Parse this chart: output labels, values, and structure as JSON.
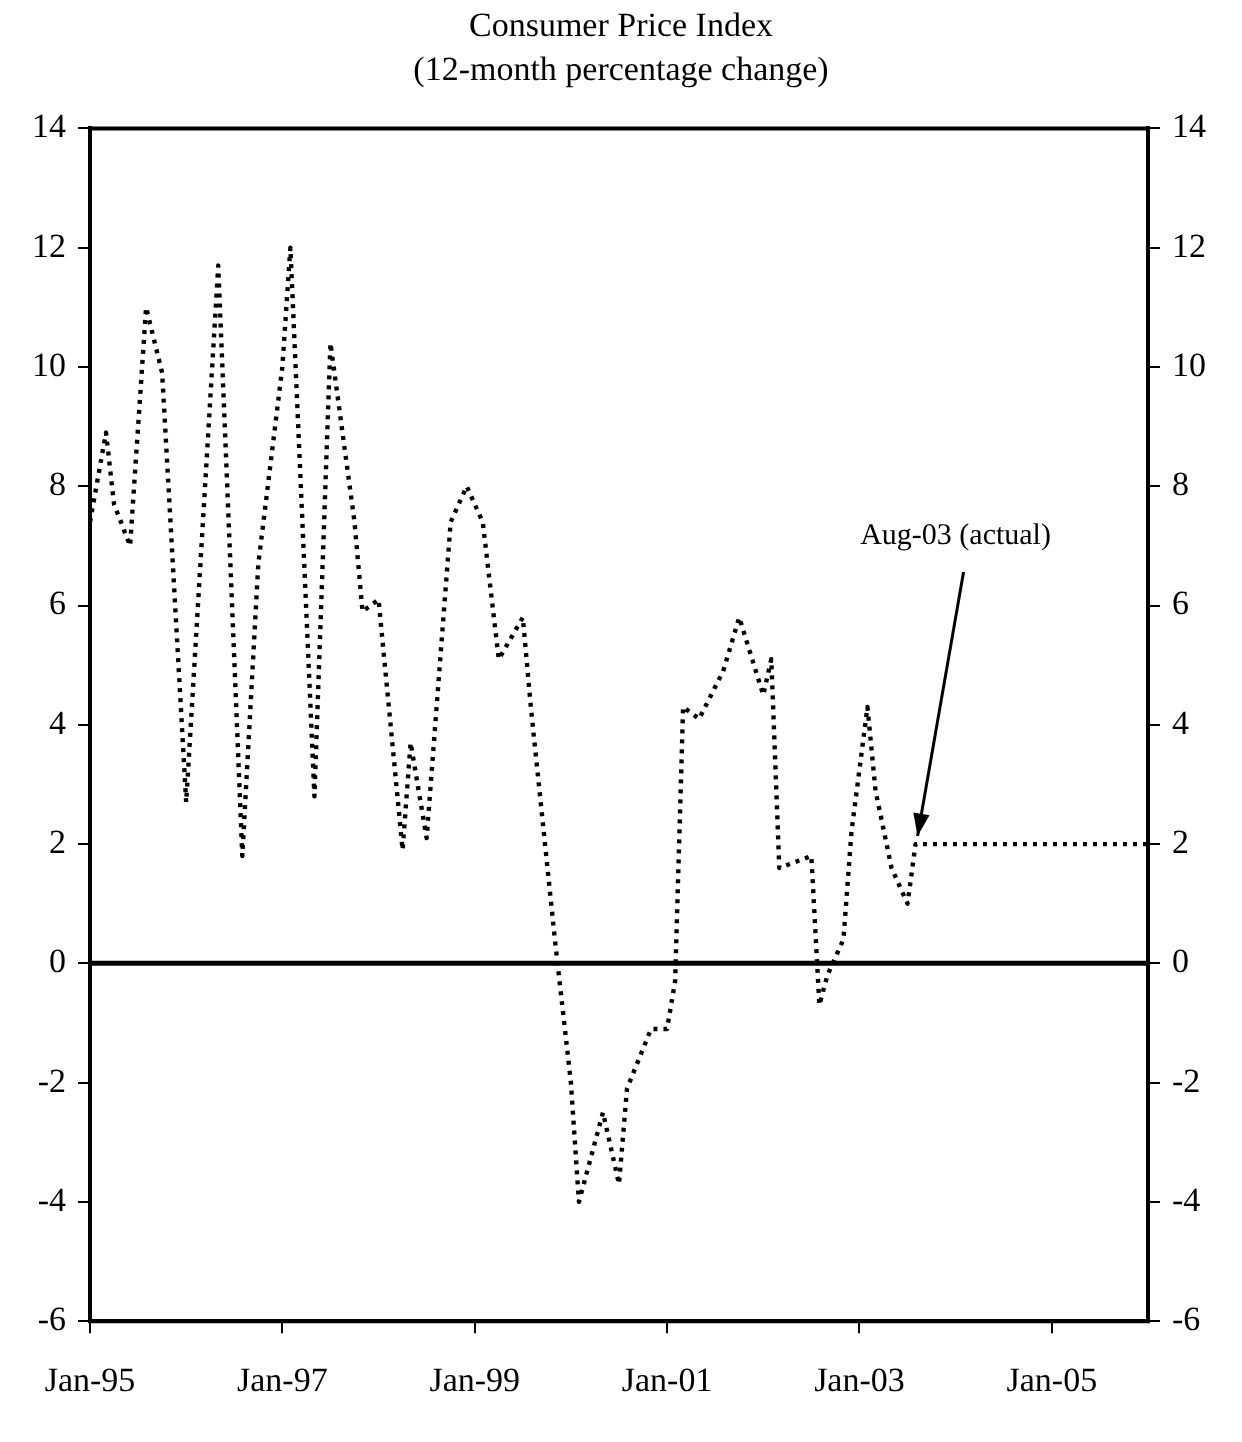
{
  "chart_data": {
    "type": "line",
    "title": "Consumer Price Index",
    "subtitle": "(12-month percentage change)",
    "x": [
      "1995-01",
      "1995-03",
      "1995-04",
      "1995-06",
      "1995-08",
      "1995-10",
      "1996-01",
      "1996-05",
      "1996-08",
      "1996-10",
      "1997-01",
      "1997-02",
      "1997-05",
      "1997-07",
      "1997-10",
      "1997-11",
      "1998-01",
      "1998-04",
      "1998-05",
      "1998-07",
      "1998-10",
      "1998-12",
      "1999-02",
      "1999-04",
      "1999-07",
      "1999-08",
      "1999-11",
      "2000-01",
      "2000-02",
      "2000-05",
      "2000-07",
      "2000-08",
      "2000-11",
      "2001-01",
      "2001-02",
      "2001-03",
      "2001-05",
      "2001-08",
      "2001-10",
      "2002-01",
      "2002-02",
      "2002-03",
      "2002-07",
      "2002-08",
      "2002-09",
      "2002-11",
      "2002-12",
      "2003-02",
      "2003-03",
      "2003-05",
      "2003-07",
      "2003-08",
      "2006-01"
    ],
    "series": [
      {
        "color": "#000000",
        "values": [
          7.4,
          8.9,
          7.7,
          7.0,
          11.0,
          9.9,
          2.7,
          11.7,
          1.8,
          6.7,
          10.0,
          12.0,
          2.8,
          10.4,
          7.4,
          5.9,
          6.1,
          1.9,
          3.7,
          2.1,
          7.4,
          8.0,
          7.4,
          5.1,
          5.8,
          4.3,
          0.4,
          -2.0,
          -4.0,
          -2.5,
          -3.7,
          -2.1,
          -1.1,
          -1.1,
          -0.3,
          4.3,
          4.1,
          4.9,
          5.8,
          4.5,
          5.1,
          1.6,
          1.8,
          -0.7,
          -0.2,
          0.4,
          2.2,
          4.3,
          2.9,
          1.6,
          1.0,
          2.0,
          2.0
        ]
      }
    ],
    "xlim": [
      "1995-01",
      "2006-01"
    ],
    "xticks": [
      {
        "value": "1995-01",
        "label": "Jan-95"
      },
      {
        "value": "1997-01",
        "label": "Jan-97"
      },
      {
        "value": "1999-01",
        "label": "Jan-99"
      },
      {
        "value": "2001-01",
        "label": "Jan-01"
      },
      {
        "value": "2003-01",
        "label": "Jan-03"
      },
      {
        "value": "2005-01",
        "label": "Jan-05"
      }
    ],
    "ylim": [
      -6,
      14
    ],
    "yticks": [
      -6,
      -4,
      -2,
      0,
      2,
      4,
      6,
      8,
      10,
      12,
      14
    ],
    "y2lim": [
      -6,
      14
    ],
    "y2ticks": [
      -6,
      -4,
      -2,
      0,
      2,
      4,
      6,
      8,
      10,
      12,
      14
    ],
    "ref_lines": [
      {
        "axis": "y",
        "value": 0,
        "color": "#000000",
        "line_style": "solid"
      }
    ],
    "annotations": [
      {
        "text": "Aug-03 (actual)",
        "x": "2003-08",
        "y": 2
      }
    ],
    "grid": false,
    "legend": false,
    "marker": "none",
    "line_style": "dotted"
  }
}
